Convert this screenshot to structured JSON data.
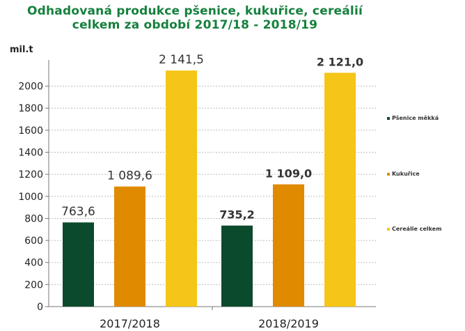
{
  "title_line1": "Odhadovaná produkce  pšenice, kukuřice, cereálií",
  "title_line2": "celkem za období  2017/18 - 2018/19",
  "colors": {
    "title": "#15803d",
    "wheat": "#0b4a2c",
    "corn": "#e08a00",
    "cereals": "#f5c518"
  },
  "chart_data": {
    "type": "bar",
    "ylabel": "mil.t",
    "ylim": [
      0,
      2200
    ],
    "yticks": [
      "0",
      "200",
      "400",
      "600",
      "800",
      "1000",
      "1200",
      "1400",
      "1600",
      "1800",
      "2000"
    ],
    "categories": [
      "2017/2018",
      "2018/2019"
    ],
    "series": [
      {
        "name": "Pšenice měkká",
        "values": [
          763.6,
          735.2
        ],
        "labels": [
          "763,6",
          "735,2"
        ]
      },
      {
        "name": "Kukuřice",
        "values": [
          1089.6,
          1109.0
        ],
        "labels": [
          "1 089,6",
          "1 109,0"
        ]
      },
      {
        "name": "Cereálie celkem",
        "values": [
          2141.5,
          2121.0
        ],
        "labels": [
          "2 141,5",
          "2 121,0"
        ]
      }
    ],
    "grid": true,
    "legend_position": "right"
  }
}
